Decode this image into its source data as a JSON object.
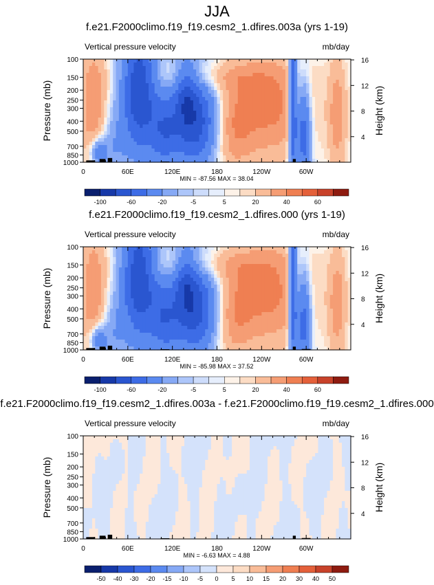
{
  "page_title": "JJA",
  "chart_data": [
    {
      "type": "heatmap",
      "title": "f.e21.F2000climo.f19_f19.cesm2_1.dfires.003a (yrs 1-19)",
      "left_string": "Vertical pressure velocity",
      "right_string": "mb/day",
      "ylabel": "Pressure (mb)",
      "ylabel_right": "Height (km)",
      "yticks": [
        "100",
        "150",
        "200",
        "250",
        "300",
        "400",
        "500",
        "700",
        "850",
        "1000"
      ],
      "yticks_right": [
        "16",
        "12",
        "8",
        "4"
      ],
      "xticks": [
        "0",
        "60E",
        "120E",
        "180",
        "120W",
        "60W"
      ],
      "xlim": [
        0,
        360
      ],
      "ylim": [
        1000,
        100
      ],
      "stats": "MIN = -87.56   MAX = 38.04",
      "colorbar_labels": [
        "-100",
        "-60",
        "-20",
        "-5",
        "5",
        "20",
        "40",
        "60"
      ],
      "levels": [
        -100,
        -80,
        -60,
        -40,
        -20,
        -10,
        -5,
        -2,
        2,
        5,
        10,
        20,
        30,
        40,
        50,
        60
      ],
      "colors": [
        "#0a1f6e",
        "#1739a8",
        "#2a56d0",
        "#3d6ce6",
        "#5b8af0",
        "#86a9f5",
        "#adc6fa",
        "#cddcfb",
        "#e6eefc",
        "#fdf2e8",
        "#fcdcc4",
        "#f9bc98",
        "#f59d74",
        "#ef7f52",
        "#e4603a",
        "#c8422a",
        "#8e1b10"
      ],
      "min": -87.56,
      "max": 38.04
    },
    {
      "type": "heatmap",
      "title": "f.e21.F2000climo.f19_f19.cesm2_1.dfires.000 (yrs 1-19)",
      "left_string": "Vertical pressure velocity",
      "right_string": "mb/day",
      "ylabel": "Pressure (mb)",
      "ylabel_right": "Height (km)",
      "yticks": [
        "100",
        "150",
        "200",
        "250",
        "300",
        "400",
        "500",
        "700",
        "850",
        "1000"
      ],
      "yticks_right": [
        "16",
        "12",
        "8",
        "4"
      ],
      "xticks": [
        "0",
        "60E",
        "120E",
        "180",
        "120W",
        "60W"
      ],
      "xlim": [
        0,
        360
      ],
      "ylim": [
        1000,
        100
      ],
      "stats": "MIN = -85.98   MAX = 37.52",
      "colorbar_labels": [
        "-100",
        "-60",
        "-20",
        "-5",
        "5",
        "20",
        "40",
        "60"
      ],
      "levels": [
        -100,
        -80,
        -60,
        -40,
        -20,
        -10,
        -5,
        -2,
        2,
        5,
        10,
        20,
        30,
        40,
        50,
        60
      ],
      "colors": [
        "#0a1f6e",
        "#1739a8",
        "#2a56d0",
        "#3d6ce6",
        "#5b8af0",
        "#86a9f5",
        "#adc6fa",
        "#cddcfb",
        "#e6eefc",
        "#fdf2e8",
        "#fcdcc4",
        "#f9bc98",
        "#f59d74",
        "#ef7f52",
        "#e4603a",
        "#c8422a",
        "#8e1b10"
      ],
      "min": -85.98,
      "max": 37.52
    },
    {
      "type": "heatmap",
      "title": "f.e21.F2000climo.f19_f19.cesm2_1.dfires.003a - f.e21.F2000climo.f19_f19.cesm2_1.dfires.000",
      "left_string": "Vertical pressure velocity",
      "right_string": "mb/day",
      "ylabel": "Pressure (mb)",
      "ylabel_right": "Height (km)",
      "yticks": [
        "100",
        "150",
        "200",
        "250",
        "300",
        "400",
        "500",
        "700",
        "850",
        "1000"
      ],
      "yticks_right": [
        "16",
        "12",
        "8",
        "4"
      ],
      "xticks": [
        "0",
        "60E",
        "120E",
        "180",
        "120W",
        "60W"
      ],
      "xlim": [
        0,
        360
      ],
      "ylim": [
        1000,
        100
      ],
      "stats": "MIN = -6.63   MAX = 4.88",
      "colorbar_labels": [
        "-50",
        "-40",
        "-30",
        "-20",
        "-15",
        "-10",
        "-5",
        "0",
        "5",
        "10",
        "15",
        "20",
        "30",
        "40",
        "50"
      ],
      "levels": [
        -50,
        -40,
        -30,
        -20,
        -15,
        -10,
        -5,
        0,
        5,
        10,
        15,
        20,
        30,
        40,
        50
      ],
      "colors": [
        "#0a1f6e",
        "#1739a8",
        "#2a56d0",
        "#3d6ce6",
        "#5b8af0",
        "#86a9f5",
        "#adc6fa",
        "#d4e2fb",
        "#fde8da",
        "#fcdcc4",
        "#f9bc98",
        "#f59d74",
        "#ef7f52",
        "#e4603a",
        "#c8422a",
        "#8e1b10"
      ],
      "min": -6.63,
      "max": 4.88
    }
  ]
}
